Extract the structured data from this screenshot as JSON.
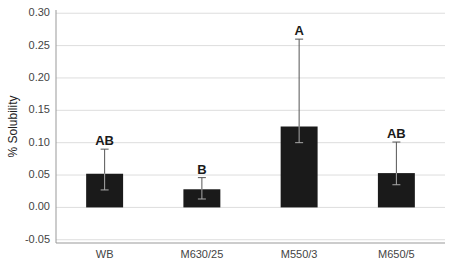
{
  "chart_data": {
    "type": "bar",
    "categories": [
      "WB",
      "M630/25",
      "M550/3",
      "M650/5"
    ],
    "values": [
      0.052,
      0.028,
      0.125,
      0.053
    ],
    "errors_up": [
      0.038,
      0.018,
      0.135,
      0.048
    ],
    "errors_down": [
      0.025,
      0.015,
      0.025,
      0.018
    ],
    "annotations": [
      "AB",
      "B",
      "A",
      "AB"
    ],
    "ylabel": "% Solubility",
    "color": "#1a1a1a",
    "ylim": [
      -0.055,
      0.305
    ],
    "yticks": [
      {
        "value": 0.3,
        "label": "0.30"
      },
      0.25,
      {
        "value": 0.2,
        "label": "0.20"
      },
      0.15,
      {
        "value": 0.1,
        "label": "0.10"
      },
      0.05,
      {
        "value": 0.0,
        "label": "0.00"
      },
      -0.05
    ],
    "grid": true
  }
}
